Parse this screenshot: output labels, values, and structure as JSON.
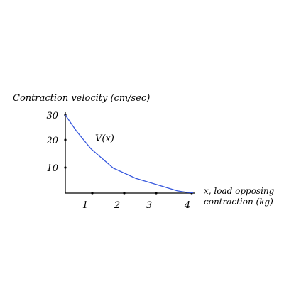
{
  "chart_data": {
    "type": "line",
    "title": "",
    "xlabel": [
      "x, load opposing",
      "contraction (kg)"
    ],
    "ylabel": "Contraction velocity (cm/sec)",
    "xlim": [
      0,
      4
    ],
    "ylim": [
      0,
      30
    ],
    "x_ticks": [
      1,
      2,
      3,
      4
    ],
    "x_tick_labels": [
      "1",
      "2",
      "3",
      "4"
    ],
    "y_ticks": [
      10,
      20,
      30
    ],
    "y_tick_labels": [
      "10",
      "20",
      "30"
    ],
    "grid": false,
    "colors": {
      "curve": "#3355dd",
      "axes": "#000000"
    },
    "series": [
      {
        "name": "V(x)",
        "x": [
          0,
          0.35,
          0.8,
          1.5,
          2.2,
          3.0,
          3.5,
          3.8,
          4.0
        ],
        "y": [
          30,
          23.5,
          16.8,
          9.8,
          5.8,
          2.8,
          0.9,
          0.3,
          0.1
        ]
      }
    ]
  }
}
